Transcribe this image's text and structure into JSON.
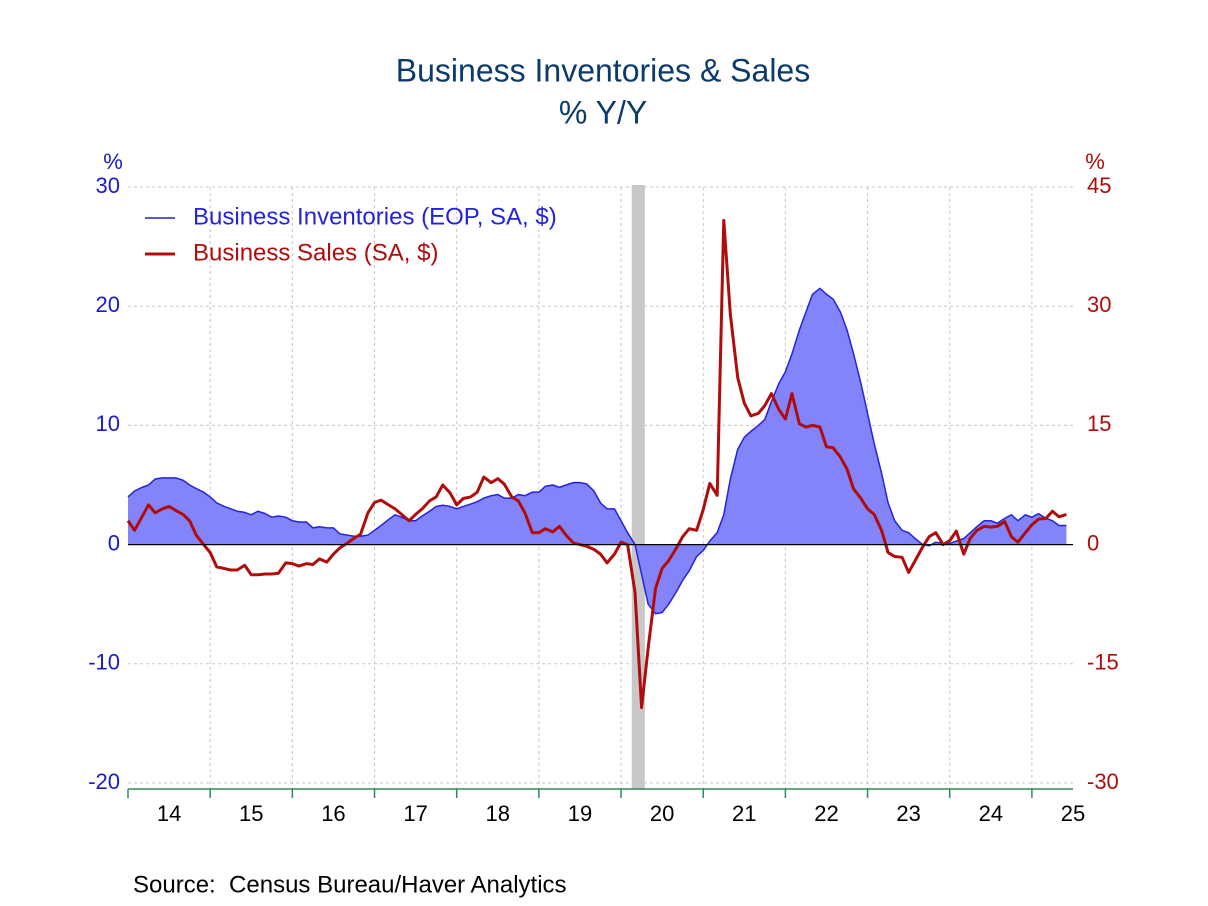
{
  "chart_data": {
    "type": "line",
    "title": "Business Inventories & Sales",
    "subtitle": "% Y/Y",
    "ylabel": "%",
    "y2label": "%",
    "source": "Source:  Census Bureau/Haver Analytics",
    "xlim": [
      14,
      25.5
    ],
    "xticks": [
      14,
      15,
      16,
      17,
      18,
      19,
      20,
      21,
      22,
      23,
      24,
      25
    ],
    "ylim": [
      -20,
      30
    ],
    "yticks": [
      -20,
      -10,
      0,
      10,
      20,
      30
    ],
    "y2lim": [
      -30,
      45
    ],
    "y2ticks": [
      -30,
      -15,
      0,
      15,
      30,
      45
    ],
    "grid": true,
    "legend": "upper left",
    "recession": [
      20.13,
      20.29
    ],
    "x": [
      14,
      14.08,
      14.17,
      14.25,
      14.33,
      14.42,
      14.5,
      14.58,
      14.67,
      14.75,
      14.83,
      14.92,
      15,
      15.08,
      15.17,
      15.25,
      15.33,
      15.42,
      15.5,
      15.58,
      15.67,
      15.75,
      15.83,
      15.92,
      16,
      16.08,
      16.17,
      16.25,
      16.33,
      16.42,
      16.5,
      16.58,
      16.67,
      16.75,
      16.83,
      16.92,
      17,
      17.08,
      17.17,
      17.25,
      17.33,
      17.42,
      17.5,
      17.58,
      17.67,
      17.75,
      17.83,
      17.92,
      18,
      18.08,
      18.17,
      18.25,
      18.33,
      18.42,
      18.5,
      18.58,
      18.67,
      18.75,
      18.83,
      18.92,
      19,
      19.08,
      19.17,
      19.25,
      19.33,
      19.42,
      19.5,
      19.58,
      19.67,
      19.75,
      19.83,
      19.92,
      20,
      20.08,
      20.17,
      20.25,
      20.33,
      20.42,
      20.5,
      20.58,
      20.67,
      20.75,
      20.83,
      20.92,
      21,
      21.08,
      21.17,
      21.25,
      21.33,
      21.42,
      21.5,
      21.58,
      21.67,
      21.75,
      21.83,
      21.92,
      22,
      22.08,
      22.17,
      22.25,
      22.33,
      22.42,
      22.5,
      22.58,
      22.67,
      22.75,
      22.83,
      22.92,
      23,
      23.08,
      23.17,
      23.25,
      23.33,
      23.42,
      23.5,
      23.58,
      23.67,
      23.75,
      23.83,
      23.92,
      24,
      24.08,
      24.17,
      24.25,
      24.33,
      24.42,
      24.5,
      24.58,
      24.67,
      24.75,
      24.83,
      24.92,
      25,
      25.08,
      25.17,
      25.25,
      25.33,
      25.42
    ],
    "series": [
      {
        "name": "Business Inventories (EOP, SA, $)",
        "color": "#2323dd",
        "fill": "#8484fa",
        "area": true,
        "values": [
          4.0,
          4.5,
          4.8,
          5.0,
          5.5,
          5.6,
          5.6,
          5.6,
          5.4,
          5.0,
          4.7,
          4.4,
          4.0,
          3.5,
          3.2,
          3.0,
          2.8,
          2.7,
          2.5,
          2.8,
          2.6,
          2.3,
          2.4,
          2.3,
          2.0,
          1.9,
          1.9,
          1.4,
          1.5,
          1.4,
          1.4,
          0.9,
          0.8,
          0.7,
          0.7,
          0.8,
          1.2,
          1.6,
          2.1,
          2.5,
          2.3,
          2.0,
          2.0,
          2.4,
          2.8,
          3.2,
          3.3,
          3.2,
          3.0,
          3.2,
          3.4,
          3.6,
          3.9,
          4.1,
          4.2,
          3.9,
          3.9,
          4.2,
          4.1,
          4.4,
          4.4,
          4.9,
          5.0,
          4.8,
          5.0,
          5.2,
          5.2,
          5.1,
          4.5,
          3.5,
          3.0,
          3.0,
          2.0,
          1.0,
          0.0,
          -2.5,
          -5.0,
          -5.8,
          -5.7,
          -5.0,
          -4.0,
          -3.0,
          -2.2,
          -1.0,
          -0.5,
          0.3,
          1.0,
          2.5,
          5.5,
          8.0,
          9.0,
          9.5,
          10.0,
          10.5,
          12.0,
          13.5,
          14.5,
          16.0,
          18.0,
          19.5,
          21.0,
          21.5,
          21.0,
          20.6,
          19.5,
          18.0,
          16.0,
          13.5,
          11.0,
          8.5,
          6.0,
          3.5,
          2.0,
          1.2,
          1.0,
          0.5,
          0.0,
          -0.1,
          0.2,
          0.1,
          0.1,
          0.3,
          0.5,
          1.0,
          1.5,
          2.0,
          2.0,
          1.8,
          2.2,
          2.5,
          2.0,
          2.5,
          2.3,
          2.6,
          2.2,
          2.0,
          1.6,
          1.6
        ]
      },
      {
        "name": "Business Sales (SA, $)",
        "color": "#b00c0c",
        "axis": "y2",
        "values": [
          3.0,
          1.8,
          3.5,
          5.0,
          4.0,
          4.5,
          4.8,
          4.3,
          3.8,
          3.0,
          1.2,
          0.0,
          -1.0,
          -2.8,
          -3.0,
          -3.2,
          -3.2,
          -2.6,
          -3.8,
          -3.8,
          -3.7,
          -3.7,
          -3.6,
          -2.3,
          -2.4,
          -2.7,
          -2.4,
          -2.5,
          -1.8,
          -2.2,
          -1.2,
          -0.4,
          0.2,
          0.8,
          1.3,
          4.0,
          5.3,
          5.6,
          5.0,
          4.5,
          3.8,
          3.0,
          3.8,
          4.5,
          5.5,
          6.0,
          7.5,
          6.5,
          5.0,
          5.8,
          6.0,
          6.6,
          8.5,
          7.8,
          8.3,
          7.6,
          6.0,
          5.5,
          4.0,
          1.5,
          1.5,
          2.0,
          1.6,
          2.3,
          1.2,
          0.2,
          0.0,
          -0.2,
          -0.6,
          -1.2,
          -2.3,
          -1.2,
          0.3,
          0.0,
          -6.0,
          -20.5,
          -13.0,
          -5.5,
          -3.0,
          -2.0,
          -0.5,
          1.0,
          2.0,
          1.8,
          4.4,
          7.7,
          6.2,
          40.8,
          29.0,
          21.0,
          17.8,
          16.2,
          16.5,
          17.5,
          19.0,
          17.0,
          15.8,
          19.0,
          15.2,
          14.8,
          15.0,
          14.8,
          12.3,
          12.2,
          11.0,
          9.5,
          7.0,
          5.8,
          4.5,
          3.8,
          1.8,
          -1.0,
          -1.5,
          -1.6,
          -3.5,
          -2.0,
          -0.3,
          1.0,
          1.5,
          0.0,
          0.5,
          1.7,
          -1.2,
          0.8,
          1.8,
          2.3,
          2.2,
          2.3,
          2.9,
          1.0,
          0.3,
          1.5,
          2.5,
          3.2,
          3.3,
          4.2,
          3.5,
          3.8
        ]
      }
    ]
  }
}
